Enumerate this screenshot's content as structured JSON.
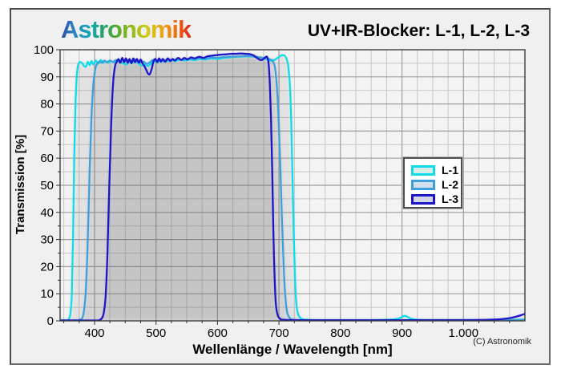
{
  "header": {
    "logo_text": "Astronomik",
    "logo_colors": [
      "#2b4da8",
      "#2f86c6",
      "#13a6b8",
      "#23a463",
      "#5aaa2d",
      "#9cbb1c",
      "#d3cb18",
      "#eaa513",
      "#ef6d10",
      "#da2a18"
    ],
    "title": "UV+IR-Blocker: L-1, L-2, L-3"
  },
  "footer": {
    "copyright": "(C) Astronomik"
  },
  "legend": {
    "position": "right-center",
    "items": [
      {
        "label": "L-1",
        "color": "#0cdde8",
        "fill": "#d8ecec"
      },
      {
        "label": "L-2",
        "color": "#3da0dc",
        "fill": "#d4e0ea"
      },
      {
        "label": "L-3",
        "color": "#1e14c8",
        "fill": "#d6d6ea"
      }
    ]
  },
  "chart_data": {
    "type": "line",
    "title": "UV+IR-Blocker: L-1, L-2, L-3",
    "xlabel": "Wellenlänge / Wavelength [nm]",
    "ylabel": "Transmission [%]",
    "xlim": [
      344,
      1100
    ],
    "ylim": [
      0,
      100
    ],
    "grid": true,
    "x_minor_step": 25,
    "y_minor_step": 5,
    "x_ticks": [
      {
        "value": 400,
        "label": "400"
      },
      {
        "value": 500,
        "label": "500"
      },
      {
        "value": 600,
        "label": "600"
      },
      {
        "value": 700,
        "label": "700"
      },
      {
        "value": 800,
        "label": "800"
      },
      {
        "value": 900,
        "label": "900"
      },
      {
        "value": 1000,
        "label": "1.000"
      }
    ],
    "y_ticks": [
      0,
      10,
      20,
      30,
      40,
      50,
      60,
      70,
      80,
      90,
      100
    ],
    "area_fill": {
      "color": "#404040",
      "opacity": 0.1,
      "blur": 2.5
    },
    "series": [
      {
        "name": "L-1",
        "color": "#0cdde8",
        "points": [
          [
            345,
            0.2
          ],
          [
            355,
            0.2
          ],
          [
            358,
            0.5
          ],
          [
            361,
            3
          ],
          [
            363,
            10
          ],
          [
            365,
            30
          ],
          [
            367,
            60
          ],
          [
            369,
            80
          ],
          [
            371,
            90
          ],
          [
            373,
            94
          ],
          [
            376,
            95.5
          ],
          [
            380,
            95
          ],
          [
            383,
            94
          ],
          [
            386,
            93.8
          ],
          [
            389,
            95.5
          ],
          [
            392,
            94.3
          ],
          [
            395,
            95.8
          ],
          [
            398,
            94.6
          ],
          [
            402,
            96
          ],
          [
            406,
            94.8
          ],
          [
            410,
            96.2
          ],
          [
            414,
            95.2
          ],
          [
            418,
            95.8
          ],
          [
            422,
            95.2
          ],
          [
            427,
            95.8
          ],
          [
            432,
            95.3
          ],
          [
            437,
            96
          ],
          [
            442,
            95.4
          ],
          [
            447,
            95
          ],
          [
            452,
            94.6
          ],
          [
            457,
            95.6
          ],
          [
            462,
            95.2
          ],
          [
            467,
            95.8
          ],
          [
            472,
            94.8
          ],
          [
            477,
            94.2
          ],
          [
            482,
            94.6
          ],
          [
            487,
            94
          ],
          [
            492,
            95
          ],
          [
            497,
            95.8
          ],
          [
            502,
            95.3
          ],
          [
            507,
            96
          ],
          [
            515,
            95.6
          ],
          [
            523,
            96.2
          ],
          [
            531,
            95.8
          ],
          [
            539,
            96.3
          ],
          [
            547,
            96
          ],
          [
            555,
            96.4
          ],
          [
            563,
            96.2
          ],
          [
            571,
            96.6
          ],
          [
            580,
            96.4
          ],
          [
            590,
            96.8
          ],
          [
            600,
            96.6
          ],
          [
            610,
            97
          ],
          [
            620,
            97.2
          ],
          [
            630,
            97.4
          ],
          [
            640,
            97.5
          ],
          [
            650,
            97.6
          ],
          [
            660,
            97.4
          ],
          [
            668,
            97.2
          ],
          [
            676,
            96.8
          ],
          [
            683,
            96.2
          ],
          [
            688,
            95.9
          ],
          [
            694,
            96.4
          ],
          [
            700,
            97.4
          ],
          [
            705,
            98
          ],
          [
            709,
            97.8
          ],
          [
            712,
            96.8
          ],
          [
            715,
            94
          ],
          [
            718,
            86
          ],
          [
            720,
            72
          ],
          [
            722,
            52
          ],
          [
            724,
            32
          ],
          [
            726,
            16
          ],
          [
            728,
            7
          ],
          [
            731,
            2.5
          ],
          [
            735,
            1
          ],
          [
            740,
            0.5
          ],
          [
            760,
            0.3
          ],
          [
            800,
            0.3
          ],
          [
            840,
            0.3
          ],
          [
            870,
            0.4
          ],
          [
            885,
            0.5
          ],
          [
            895,
            0.9
          ],
          [
            902,
            1.7
          ],
          [
            906,
            1.8
          ],
          [
            910,
            1.3
          ],
          [
            916,
            0.7
          ],
          [
            925,
            0.4
          ],
          [
            950,
            0.3
          ],
          [
            1000,
            0.3
          ],
          [
            1050,
            0.3
          ],
          [
            1080,
            0.4
          ],
          [
            1100,
            0.5
          ]
        ]
      },
      {
        "name": "L-2",
        "color": "#3da0dc",
        "points": [
          [
            345,
            0.2
          ],
          [
            370,
            0.2
          ],
          [
            376,
            0.4
          ],
          [
            380,
            1
          ],
          [
            383,
            4
          ],
          [
            386,
            12
          ],
          [
            389,
            30
          ],
          [
            392,
            55
          ],
          [
            395,
            75
          ],
          [
            398,
            87
          ],
          [
            401,
            92.5
          ],
          [
            404,
            94.8
          ],
          [
            408,
            95.6
          ],
          [
            412,
            95.2
          ],
          [
            416,
            96
          ],
          [
            420,
            95.4
          ],
          [
            425,
            96
          ],
          [
            430,
            95.5
          ],
          [
            435,
            96.2
          ],
          [
            440,
            95.6
          ],
          [
            445,
            96.3
          ],
          [
            450,
            95.8
          ],
          [
            455,
            96.2
          ],
          [
            460,
            95.6
          ],
          [
            465,
            96.4
          ],
          [
            470,
            95.8
          ],
          [
            475,
            95.2
          ],
          [
            480,
            95.6
          ],
          [
            485,
            94.8
          ],
          [
            490,
            95.4
          ],
          [
            495,
            96.2
          ],
          [
            500,
            95.8
          ],
          [
            505,
            96.4
          ],
          [
            512,
            96
          ],
          [
            520,
            96.5
          ],
          [
            528,
            96.2
          ],
          [
            536,
            96.6
          ],
          [
            544,
            96.3
          ],
          [
            552,
            96.7
          ],
          [
            560,
            96.5
          ],
          [
            570,
            96.9
          ],
          [
            580,
            96.7
          ],
          [
            590,
            97.1
          ],
          [
            600,
            97
          ],
          [
            610,
            97.3
          ],
          [
            620,
            97.4
          ],
          [
            630,
            97.5
          ],
          [
            640,
            97.6
          ],
          [
            650,
            97.7
          ],
          [
            658,
            97.5
          ],
          [
            666,
            97.3
          ],
          [
            674,
            97
          ],
          [
            680,
            96.8
          ],
          [
            685,
            96.5
          ],
          [
            689,
            96
          ],
          [
            693,
            94
          ],
          [
            696,
            88
          ],
          [
            699,
            76
          ],
          [
            702,
            58
          ],
          [
            705,
            36
          ],
          [
            708,
            18
          ],
          [
            711,
            7
          ],
          [
            714,
            2.5
          ],
          [
            718,
            1
          ],
          [
            724,
            0.4
          ],
          [
            760,
            0.25
          ],
          [
            900,
            0.25
          ],
          [
            1000,
            0.25
          ],
          [
            1100,
            0.3
          ]
        ]
      },
      {
        "name": "L-3",
        "color": "#1e14c8",
        "points": [
          [
            345,
            0.15
          ],
          [
            400,
            0.15
          ],
          [
            408,
            0.3
          ],
          [
            412,
            1
          ],
          [
            415,
            3
          ],
          [
            418,
            9
          ],
          [
            421,
            25
          ],
          [
            424,
            50
          ],
          [
            427,
            72
          ],
          [
            430,
            87
          ],
          [
            433,
            93.5
          ],
          [
            436,
            95.5
          ],
          [
            439,
            96.5
          ],
          [
            442,
            95.2
          ],
          [
            445,
            97
          ],
          [
            448,
            95.4
          ],
          [
            451,
            96.8
          ],
          [
            454,
            95.2
          ],
          [
            457,
            96.6
          ],
          [
            460,
            95
          ],
          [
            463,
            96.8
          ],
          [
            466,
            95.4
          ],
          [
            469,
            96.6
          ],
          [
            472,
            95.2
          ],
          [
            475,
            96.4
          ],
          [
            478,
            95
          ],
          [
            481,
            94
          ],
          [
            484,
            92.6
          ],
          [
            487,
            91.2
          ],
          [
            490,
            91
          ],
          [
            493,
            93
          ],
          [
            496,
            95.8
          ],
          [
            499,
            96.6
          ],
          [
            502,
            95.4
          ],
          [
            505,
            96.8
          ],
          [
            508,
            95.6
          ],
          [
            511,
            96.6
          ],
          [
            515,
            95.6
          ],
          [
            519,
            96.8
          ],
          [
            523,
            95.8
          ],
          [
            527,
            96.6
          ],
          [
            531,
            96
          ],
          [
            536,
            97
          ],
          [
            541,
            96.2
          ],
          [
            546,
            97
          ],
          [
            551,
            96.4
          ],
          [
            557,
            97.2
          ],
          [
            563,
            96.8
          ],
          [
            570,
            97.4
          ],
          [
            577,
            97
          ],
          [
            584,
            97.6
          ],
          [
            591,
            97.8
          ],
          [
            598,
            98
          ],
          [
            606,
            98.2
          ],
          [
            614,
            98.3
          ],
          [
            622,
            98.5
          ],
          [
            630,
            98.5
          ],
          [
            638,
            98.6
          ],
          [
            646,
            98.5
          ],
          [
            652,
            98.4
          ],
          [
            658,
            98
          ],
          [
            663,
            97.2
          ],
          [
            668,
            96.4
          ],
          [
            672,
            96.2
          ],
          [
            676,
            96.8
          ],
          [
            679,
            97.4
          ],
          [
            681,
            97.2
          ],
          [
            683,
            95
          ],
          [
            685,
            88
          ],
          [
            687,
            75
          ],
          [
            689,
            55
          ],
          [
            691,
            32
          ],
          [
            693,
            15
          ],
          [
            695,
            6
          ],
          [
            698,
            2
          ],
          [
            702,
            0.8
          ],
          [
            708,
            0.4
          ],
          [
            750,
            0.25
          ],
          [
            900,
            0.25
          ],
          [
            1000,
            0.3
          ],
          [
            1040,
            0.4
          ],
          [
            1060,
            0.6
          ],
          [
            1075,
            1
          ],
          [
            1085,
            1.5
          ],
          [
            1095,
            2.2
          ],
          [
            1100,
            2.6
          ]
        ]
      }
    ]
  }
}
